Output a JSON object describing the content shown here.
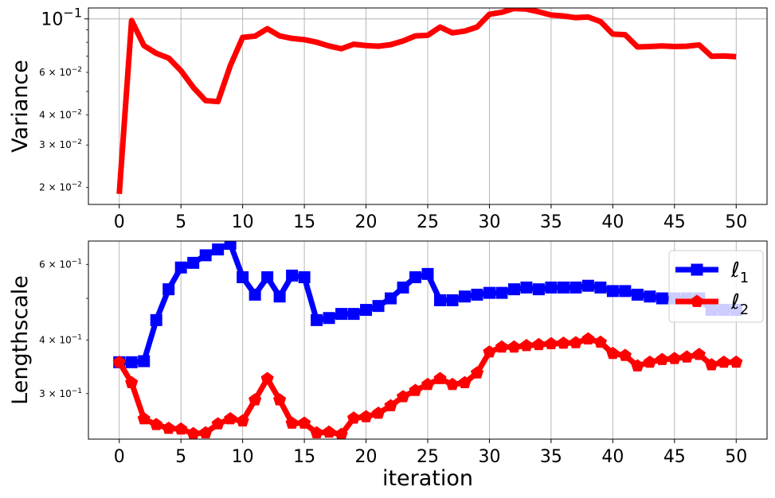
{
  "chart_data": [
    {
      "type": "line",
      "ylabel": "Variance",
      "xlabel": "",
      "yscale": "log",
      "ylim": [
        0.017,
        0.111
      ],
      "xlim": [
        -2.5,
        52.5
      ],
      "grid": true,
      "xticks": [
        "0",
        "5",
        "10",
        "15",
        "20",
        "25",
        "30",
        "35",
        "40",
        "45",
        "50"
      ],
      "yticks_major": [
        {
          "value": 0.1,
          "label": "10",
          "exp": "−1"
        }
      ],
      "yticks_minor": [
        {
          "value": 0.06,
          "label": "6 × 10",
          "exp": "−2"
        },
        {
          "value": 0.04,
          "label": "4 × 10",
          "exp": "−2"
        },
        {
          "value": 0.03,
          "label": "3 × 10",
          "exp": "−2"
        },
        {
          "value": 0.02,
          "label": "2 × 10",
          "exp": "−2"
        }
      ],
      "series": [
        {
          "color": "#ff0000",
          "x": [
            0,
            1,
            2,
            3,
            4,
            5,
            6,
            7,
            8,
            9,
            10,
            11,
            12,
            13,
            14,
            15,
            16,
            17,
            18,
            19,
            20,
            21,
            22,
            23,
            24,
            25,
            26,
            27,
            28,
            29,
            30,
            31,
            32,
            33,
            34,
            35,
            36,
            37,
            38,
            39,
            40,
            41,
            42,
            43,
            44,
            45,
            46,
            47,
            48,
            49,
            50
          ],
          "values": [
            0.0188,
            0.0985,
            0.0775,
            0.072,
            0.0688,
            0.061,
            0.052,
            0.0458,
            0.0454,
            0.064,
            0.0838,
            0.0848,
            0.091,
            0.085,
            0.083,
            0.082,
            0.08,
            0.0772,
            0.0752,
            0.0785,
            0.0775,
            0.077,
            0.0782,
            0.081,
            0.085,
            0.0855,
            0.0925,
            0.0875,
            0.089,
            0.0925,
            0.1045,
            0.1065,
            0.1105,
            0.1098,
            0.107,
            0.1038,
            0.1028,
            0.1012,
            0.1018,
            0.0975,
            0.0865,
            0.086,
            0.0765,
            0.0768,
            0.0772,
            0.0768,
            0.077,
            0.078,
            0.07,
            0.0702,
            0.0697
          ]
        }
      ]
    },
    {
      "type": "line",
      "ylabel": "Lengthscale",
      "xlabel": "iteration",
      "yscale": "log",
      "ylim": [
        0.235,
        0.68
      ],
      "xlim": [
        -2.5,
        52.5
      ],
      "grid": true,
      "legend": "top-right",
      "xticks": [
        "0",
        "5",
        "10",
        "15",
        "20",
        "25",
        "30",
        "35",
        "40",
        "45",
        "50"
      ],
      "yticks_minor": [
        {
          "value": 0.6,
          "label": "6 × 10",
          "exp": "−1"
        },
        {
          "value": 0.4,
          "label": "4 × 10",
          "exp": "−1"
        },
        {
          "value": 0.3,
          "label": "3 × 10",
          "exp": "−1"
        }
      ],
      "series": [
        {
          "name": "ℓ",
          "sub": "1",
          "color": "#0000ff",
          "marker": "square",
          "x": [
            0,
            1,
            2,
            3,
            4,
            5,
            6,
            7,
            8,
            9,
            10,
            11,
            12,
            13,
            14,
            15,
            16,
            17,
            18,
            19,
            20,
            21,
            22,
            23,
            24,
            25,
            26,
            27,
            28,
            29,
            30,
            31,
            32,
            33,
            34,
            35,
            36,
            37,
            38,
            39,
            40,
            41,
            42,
            43,
            44,
            45,
            46,
            47,
            48,
            49,
            50
          ],
          "values": [
            0.355,
            0.355,
            0.357,
            0.445,
            0.525,
            0.59,
            0.605,
            0.63,
            0.65,
            0.67,
            0.56,
            0.51,
            0.56,
            0.505,
            0.565,
            0.56,
            0.445,
            0.45,
            0.46,
            0.46,
            0.47,
            0.48,
            0.5,
            0.53,
            0.56,
            0.57,
            0.495,
            0.495,
            0.505,
            0.51,
            0.515,
            0.515,
            0.525,
            0.53,
            0.525,
            0.53,
            0.53,
            0.53,
            0.535,
            0.53,
            0.52,
            0.52,
            0.51,
            0.505,
            0.5,
            0.5,
            0.5,
            0.5,
            0.47,
            0.47,
            0.47
          ]
        },
        {
          "name": "ℓ",
          "sub": "2",
          "color": "#ff0000",
          "marker": "pentagon",
          "x": [
            0,
            1,
            2,
            3,
            4,
            5,
            6,
            7,
            8,
            9,
            10,
            11,
            12,
            13,
            14,
            15,
            16,
            17,
            18,
            19,
            20,
            21,
            22,
            23,
            24,
            25,
            26,
            27,
            28,
            29,
            30,
            31,
            32,
            33,
            34,
            35,
            36,
            37,
            38,
            39,
            40,
            41,
            42,
            43,
            44,
            45,
            46,
            47,
            48,
            49,
            50
          ],
          "values": [
            0.355,
            0.318,
            0.262,
            0.254,
            0.249,
            0.248,
            0.242,
            0.243,
            0.255,
            0.262,
            0.259,
            0.29,
            0.325,
            0.29,
            0.256,
            0.256,
            0.243,
            0.244,
            0.241,
            0.263,
            0.265,
            0.27,
            0.281,
            0.295,
            0.305,
            0.315,
            0.325,
            0.315,
            0.318,
            0.335,
            0.375,
            0.385,
            0.385,
            0.388,
            0.39,
            0.392,
            0.393,
            0.394,
            0.402,
            0.395,
            0.372,
            0.368,
            0.348,
            0.355,
            0.36,
            0.362,
            0.365,
            0.37,
            0.35,
            0.355,
            0.355
          ]
        }
      ]
    }
  ]
}
